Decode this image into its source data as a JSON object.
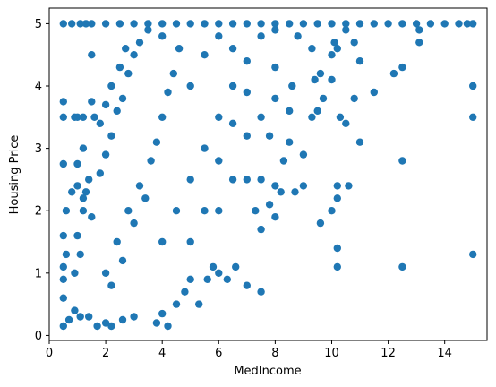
{
  "chart_data": {
    "type": "scatter",
    "title": "",
    "xlabel": "MedIncome",
    "ylabel": "Housing Price",
    "xlim": [
      0.0,
      15.5
    ],
    "ylim": [
      -0.08,
      5.25
    ],
    "xticks": [
      0,
      2,
      4,
      6,
      8,
      10,
      12,
      14
    ],
    "yticks": [
      0,
      1,
      2,
      3,
      4,
      5
    ],
    "grid": false,
    "marker_color": "#1f77b4",
    "points": [
      [
        0.5,
        0.15
      ],
      [
        0.5,
        0.6
      ],
      [
        0.5,
        0.9
      ],
      [
        0.5,
        1.1
      ],
      [
        0.5,
        1.6
      ],
      [
        0.5,
        2.75
      ],
      [
        0.5,
        3.5
      ],
      [
        0.5,
        3.75
      ],
      [
        0.5,
        5.0
      ],
      [
        0.8,
        5.0
      ],
      [
        0.9,
        3.5
      ],
      [
        1.0,
        2.75
      ],
      [
        1.0,
        3.5
      ],
      [
        1.2,
        3.5
      ],
      [
        1.1,
        5.0
      ],
      [
        1.3,
        5.0
      ],
      [
        1.5,
        3.75
      ],
      [
        1.5,
        4.5
      ],
      [
        1.6,
        3.5
      ],
      [
        0.7,
        0.25
      ],
      [
        0.9,
        0.4
      ],
      [
        1.1,
        0.3
      ],
      [
        1.4,
        0.3
      ],
      [
        1.7,
        0.15
      ],
      [
        2.0,
        0.2
      ],
      [
        2.2,
        0.15
      ],
      [
        2.6,
        0.25
      ],
      [
        3.0,
        0.3
      ],
      [
        1.0,
        1.6
      ],
      [
        1.2,
        2.0
      ],
      [
        1.3,
        2.3
      ],
      [
        1.5,
        1.9
      ],
      [
        1.8,
        2.6
      ],
      [
        2.0,
        2.9
      ],
      [
        2.2,
        3.2
      ],
      [
        2.4,
        3.6
      ],
      [
        2.6,
        3.8
      ],
      [
        2.8,
        4.2
      ],
      [
        3.0,
        4.5
      ],
      [
        3.2,
        4.7
      ],
      [
        3.5,
        4.9
      ],
      [
        2.0,
        1.0
      ],
      [
        2.2,
        0.8
      ],
      [
        2.4,
        1.5
      ],
      [
        2.6,
        1.2
      ],
      [
        2.8,
        2.0
      ],
      [
        3.0,
        1.8
      ],
      [
        3.2,
        2.4
      ],
      [
        3.4,
        2.2
      ],
      [
        3.6,
        2.8
      ],
      [
        3.8,
        3.1
      ],
      [
        4.0,
        3.5
      ],
      [
        4.2,
        3.9
      ],
      [
        4.4,
        4.2
      ],
      [
        4.6,
        4.6
      ],
      [
        3.8,
        0.2
      ],
      [
        4.0,
        0.35
      ],
      [
        4.2,
        0.15
      ],
      [
        4.5,
        0.5
      ],
      [
        4.8,
        0.7
      ],
      [
        5.0,
        0.9
      ],
      [
        5.3,
        0.5
      ],
      [
        5.6,
        0.9
      ],
      [
        5.8,
        1.1
      ],
      [
        6.0,
        1.0
      ],
      [
        6.3,
        0.9
      ],
      [
        6.6,
        1.1
      ],
      [
        7.0,
        0.8
      ],
      [
        7.5,
        0.7
      ],
      [
        4.0,
        1.5
      ],
      [
        4.5,
        2.0
      ],
      [
        5.0,
        2.5
      ],
      [
        5.0,
        1.5
      ],
      [
        5.5,
        2.0
      ],
      [
        5.5,
        3.0
      ],
      [
        6.0,
        2.0
      ],
      [
        6.0,
        2.8
      ],
      [
        6.0,
        3.5
      ],
      [
        6.5,
        2.5
      ],
      [
        6.5,
        3.4
      ],
      [
        6.5,
        4.0
      ],
      [
        7.0,
        2.5
      ],
      [
        7.0,
        3.2
      ],
      [
        7.0,
        3.9
      ],
      [
        7.3,
        2.0
      ],
      [
        7.5,
        1.7
      ],
      [
        7.5,
        2.5
      ],
      [
        7.5,
        3.5
      ],
      [
        7.8,
        2.1
      ],
      [
        7.8,
        3.2
      ],
      [
        8.0,
        2.4
      ],
      [
        8.0,
        1.9
      ],
      [
        8.0,
        3.8
      ],
      [
        8.0,
        4.3
      ],
      [
        8.2,
        2.3
      ],
      [
        8.3,
        2.8
      ],
      [
        8.5,
        3.1
      ],
      [
        8.5,
        3.6
      ],
      [
        8.6,
        4.0
      ],
      [
        8.7,
        2.3
      ],
      [
        9.0,
        2.4
      ],
      [
        9.0,
        2.9
      ],
      [
        9.3,
        3.5
      ],
      [
        9.4,
        4.1
      ],
      [
        9.5,
        3.6
      ],
      [
        9.6,
        1.8
      ],
      [
        9.7,
        3.8
      ],
      [
        10.0,
        2.0
      ],
      [
        10.0,
        4.1
      ],
      [
        10.2,
        2.2
      ],
      [
        10.2,
        2.4
      ],
      [
        10.3,
        3.5
      ],
      [
        10.5,
        3.4
      ],
      [
        10.6,
        2.4
      ],
      [
        10.8,
        3.8
      ],
      [
        11.0,
        3.1
      ],
      [
        11.0,
        4.4
      ],
      [
        11.5,
        3.9
      ],
      [
        8.8,
        4.8
      ],
      [
        9.3,
        4.6
      ],
      [
        9.6,
        4.2
      ],
      [
        10.0,
        4.5
      ],
      [
        10.2,
        4.6
      ],
      [
        10.5,
        4.9
      ],
      [
        10.8,
        4.7
      ],
      [
        10.1,
        4.7
      ],
      [
        10.2,
        1.4
      ],
      [
        10.2,
        1.1
      ],
      [
        12.2,
        4.2
      ],
      [
        12.5,
        4.3
      ],
      [
        12.5,
        2.8
      ],
      [
        12.5,
        1.1
      ],
      [
        13.1,
        4.7
      ],
      [
        13.1,
        4.9
      ],
      [
        15.0,
        4.0
      ],
      [
        15.0,
        3.5
      ],
      [
        15.0,
        1.3
      ],
      [
        1.5,
        5.0
      ],
      [
        2.0,
        5.0
      ],
      [
        2.5,
        5.0
      ],
      [
        3.0,
        5.0
      ],
      [
        3.5,
        5.0
      ],
      [
        4.0,
        5.0
      ],
      [
        4.5,
        5.0
      ],
      [
        5.0,
        5.0
      ],
      [
        5.5,
        5.0
      ],
      [
        6.0,
        5.0
      ],
      [
        6.5,
        5.0
      ],
      [
        7.0,
        5.0
      ],
      [
        7.5,
        5.0
      ],
      [
        8.0,
        5.0
      ],
      [
        8.5,
        5.0
      ],
      [
        9.0,
        5.0
      ],
      [
        9.5,
        5.0
      ],
      [
        10.0,
        5.0
      ],
      [
        10.5,
        5.0
      ],
      [
        11.0,
        5.0
      ],
      [
        11.5,
        5.0
      ],
      [
        12.0,
        5.0
      ],
      [
        12.5,
        5.0
      ],
      [
        13.0,
        5.0
      ],
      [
        13.5,
        5.0
      ],
      [
        14.0,
        5.0
      ],
      [
        14.5,
        5.0
      ],
      [
        14.8,
        5.0
      ],
      [
        15.0,
        5.0
      ],
      [
        1.0,
        2.4
      ],
      [
        1.2,
        2.2
      ],
      [
        1.1,
        1.3
      ],
      [
        0.9,
        1.0
      ],
      [
        0.6,
        1.3
      ],
      [
        0.6,
        2.0
      ],
      [
        0.8,
        2.3
      ],
      [
        1.4,
        2.5
      ],
      [
        1.2,
        3.0
      ],
      [
        1.8,
        3.4
      ],
      [
        2.0,
        3.7
      ],
      [
        2.2,
        4.0
      ],
      [
        2.5,
        4.3
      ],
      [
        2.7,
        4.6
      ],
      [
        5.5,
        4.5
      ],
      [
        6.0,
        4.8
      ],
      [
        6.5,
        4.6
      ],
      [
        7.0,
        4.4
      ],
      [
        7.5,
        4.8
      ],
      [
        8.0,
        4.9
      ],
      [
        5.0,
        4.0
      ],
      [
        4.0,
        4.8
      ]
    ]
  }
}
